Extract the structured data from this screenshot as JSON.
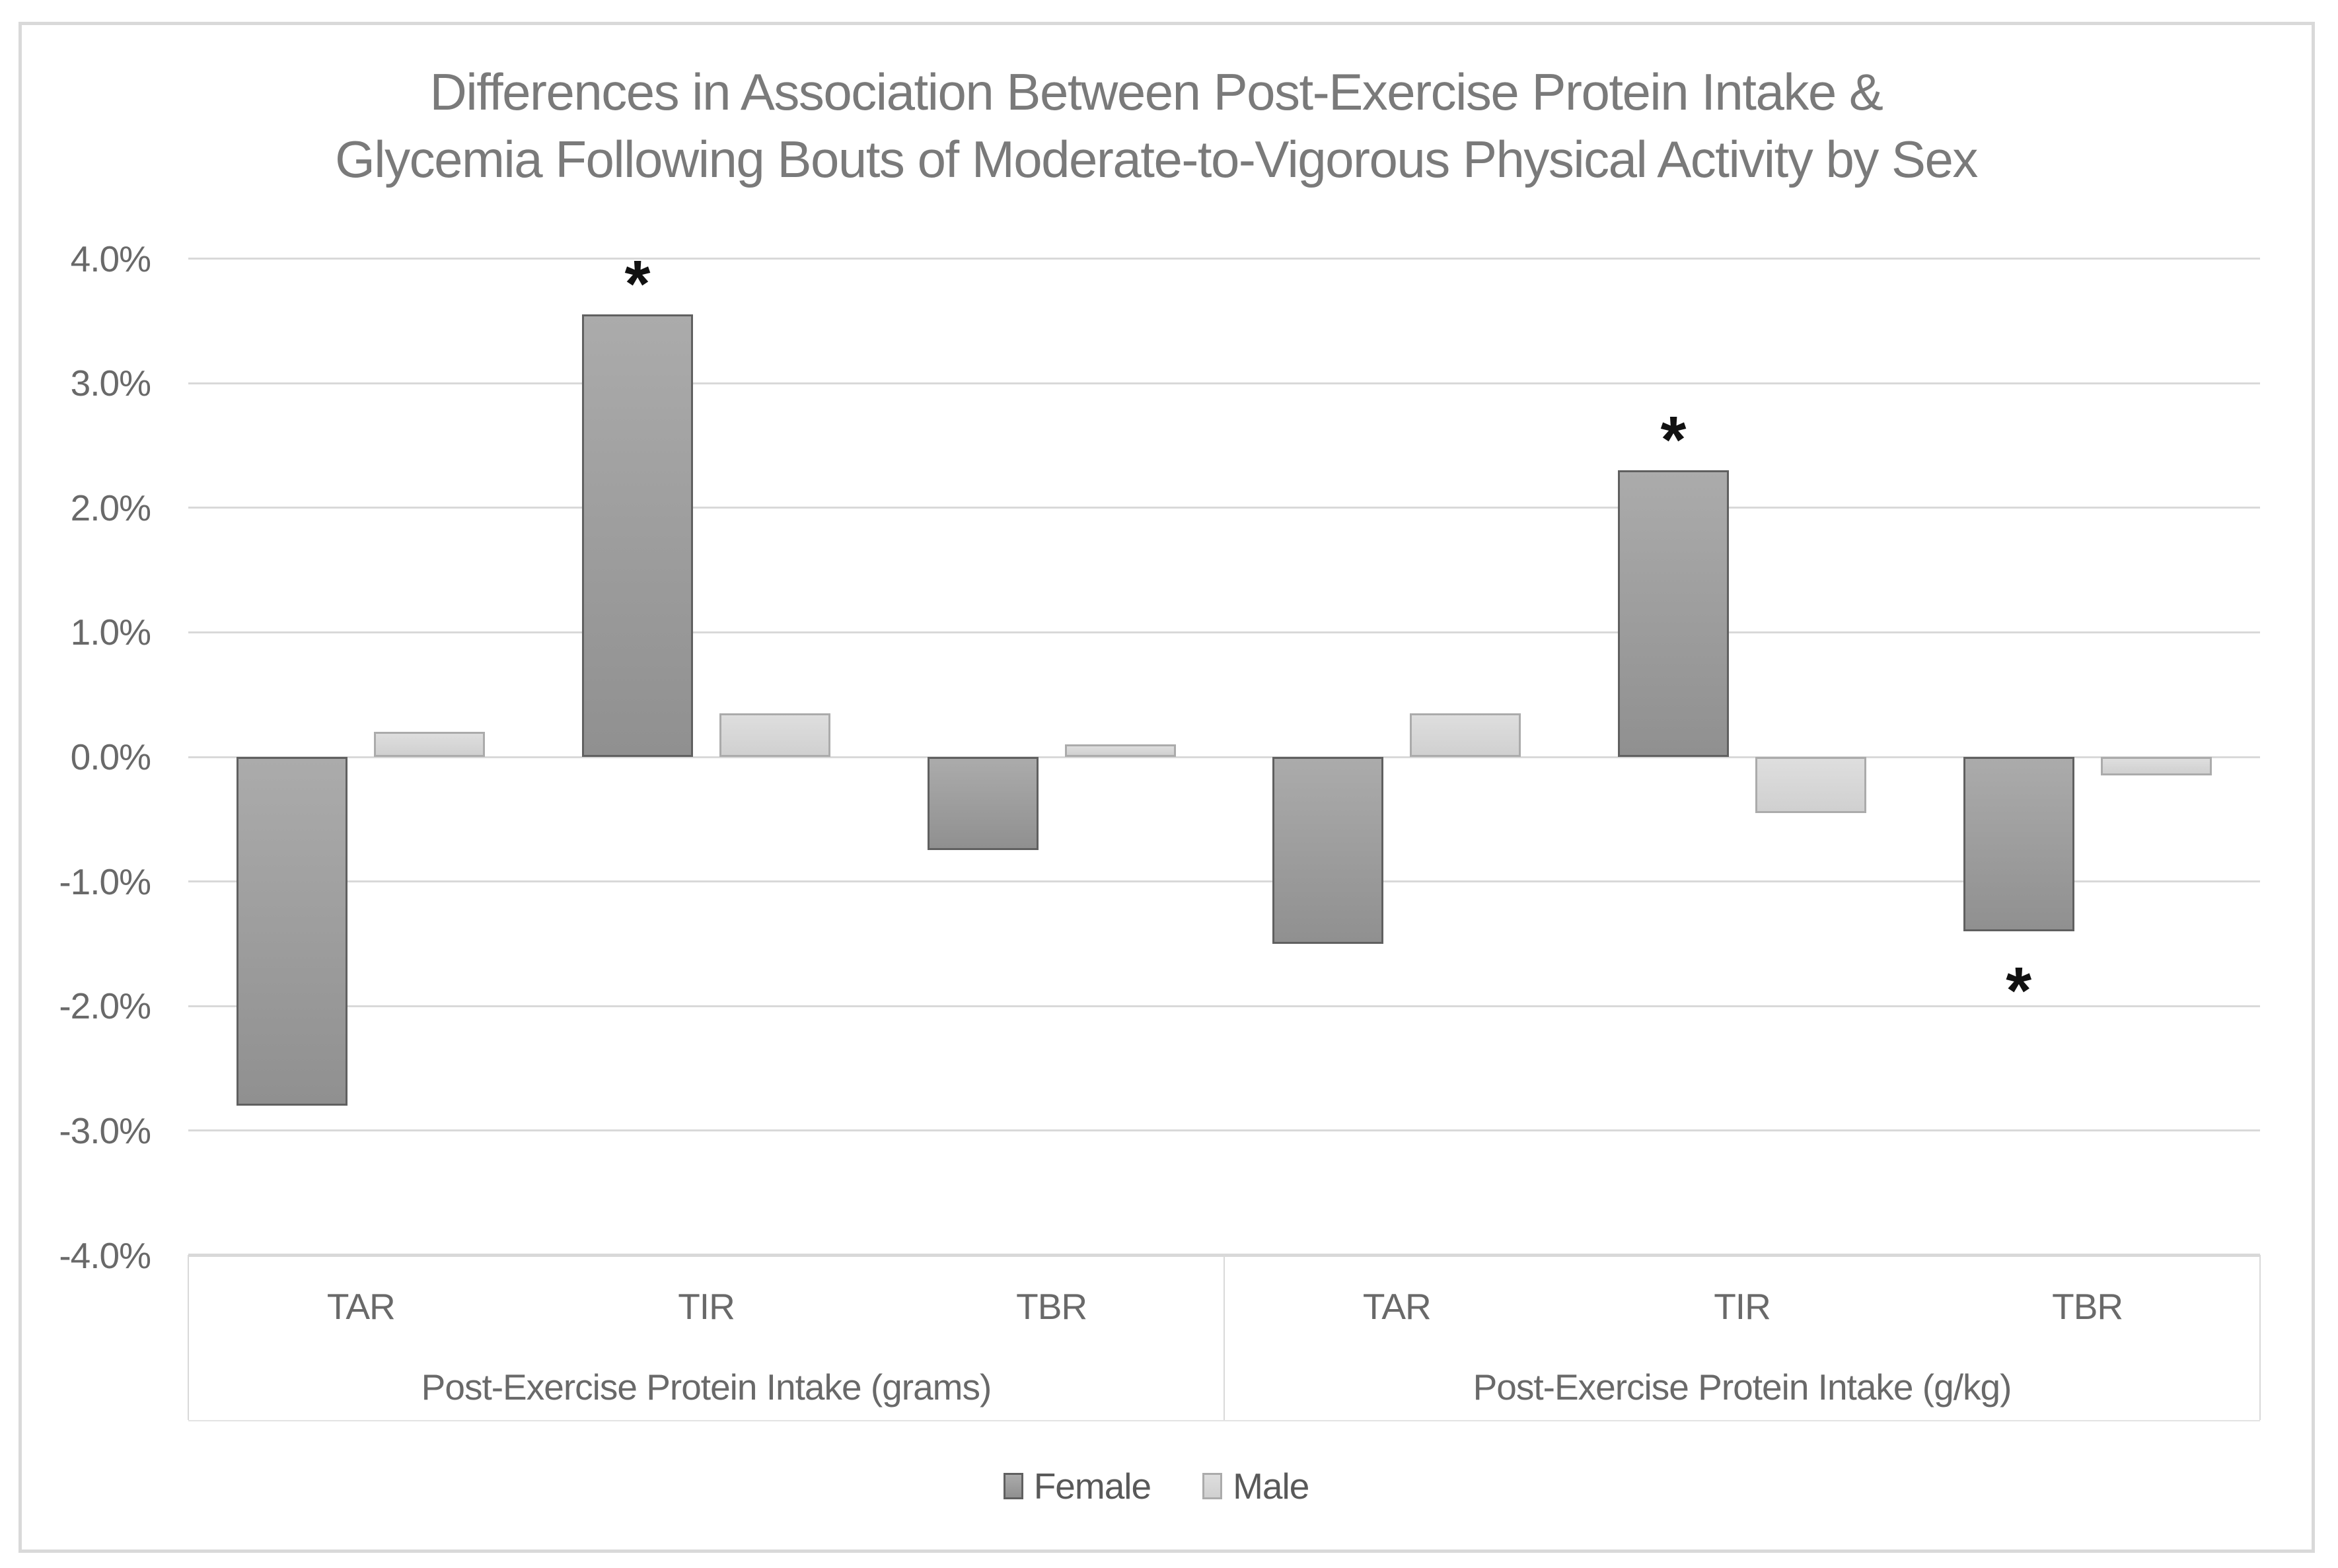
{
  "title": {
    "line1": "Differences in Association Between Post-Exercise Protein Intake &",
    "line2": "Glycemia Following Bouts of Moderate-to-Vigorous Physical Activity by Sex"
  },
  "chart_data": {
    "type": "bar",
    "title": "Differences in Association Between Post-Exercise Protein Intake & Glycemia Following Bouts of Moderate-to-Vigorous Physical Activity by Sex",
    "ylabel": "",
    "xlabel": "",
    "y_axis": {
      "min": -4.0,
      "max": 4.0,
      "step": 1.0,
      "ticks": [
        {
          "v": 4,
          "label": "4.0%"
        },
        {
          "v": 3,
          "label": "3.0%"
        },
        {
          "v": 2,
          "label": "2.0%"
        },
        {
          "v": 1,
          "label": "1.0%"
        },
        {
          "v": 0,
          "label": "0.0%"
        },
        {
          "v": -1,
          "label": "-1.0%"
        },
        {
          "v": -2,
          "label": "-2.0%"
        },
        {
          "v": -3,
          "label": "-3.0%"
        },
        {
          "v": -4,
          "label": "-4.0%"
        }
      ]
    },
    "grid": true,
    "legend_position": "bottom",
    "significance_marker": "*",
    "groups": [
      {
        "label": "Post-Exercise Protein Intake (grams)",
        "categories": [
          "TAR",
          "TIR",
          "TBR"
        ],
        "series": [
          {
            "name": "Female",
            "values": [
              -2.8,
              3.55,
              -0.75
            ],
            "sig": [
              null,
              "above",
              null
            ]
          },
          {
            "name": "Male",
            "values": [
              0.2,
              0.35,
              0.1
            ],
            "sig": [
              null,
              null,
              null
            ]
          }
        ]
      },
      {
        "label": "Post-Exercise Protein Intake (g/kg)",
        "categories": [
          "TAR",
          "TIR",
          "TBR"
        ],
        "series": [
          {
            "name": "Female",
            "values": [
              -1.5,
              2.3,
              -1.4
            ],
            "sig": [
              null,
              "above",
              "below"
            ]
          },
          {
            "name": "Male",
            "values": [
              0.35,
              -0.45,
              -0.15
            ],
            "sig": [
              null,
              null,
              null
            ]
          }
        ]
      }
    ],
    "legend": [
      {
        "label": "Female",
        "fill": "#9c9c9c",
        "border": "#606060"
      },
      {
        "label": "Male",
        "fill": "#d8d8d8",
        "border": "#ababab"
      }
    ],
    "colors": {
      "female_fill": "#9c9c9c",
      "female_border": "#606060",
      "male_fill": "#d8d8d8",
      "male_border": "#ababab",
      "gridline": "#d9d9d9",
      "text": "#696969",
      "title_text": "#7a7a7a",
      "marker": "#111111"
    }
  }
}
